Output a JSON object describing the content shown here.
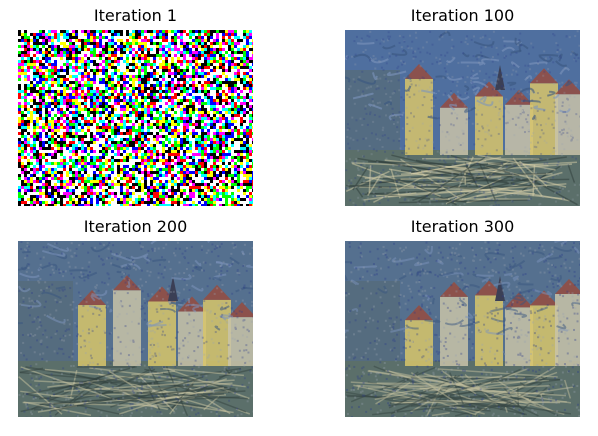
{
  "panels": [
    {
      "title": "Iteration 1",
      "kind": "noise"
    },
    {
      "title": "Iteration 100",
      "kind": "styled",
      "strength": 1.0
    },
    {
      "title": "Iteration 200",
      "kind": "styled",
      "strength": 0.75
    },
    {
      "title": "Iteration 300",
      "kind": "styled",
      "strength": 0.6
    }
  ],
  "colors": {
    "sky": "#4f6f9f",
    "sky_dark": "#3a5680",
    "water": "#5b6f6a",
    "building_light": "#c9c3a8",
    "building_yellow": "#d8c56a",
    "roof_red": "#9a4a3a",
    "tree": "#556b7a"
  }
}
